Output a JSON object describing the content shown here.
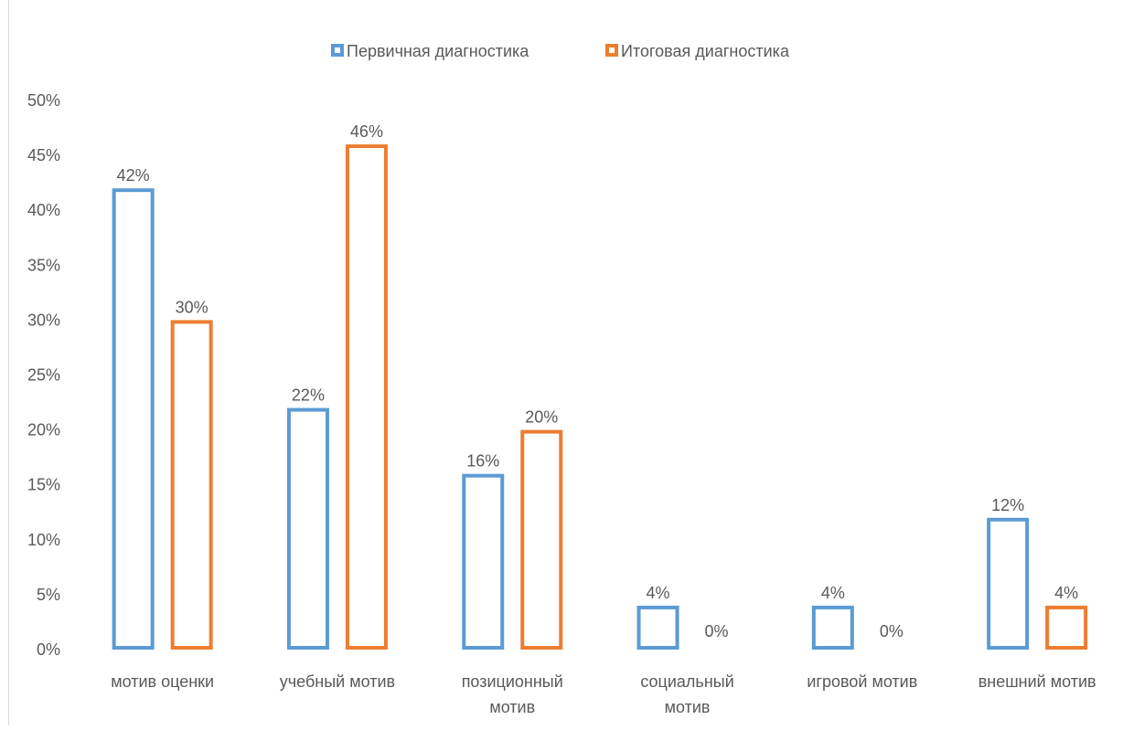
{
  "chart_data": {
    "type": "bar",
    "categories": [
      [
        "мотив оценки"
      ],
      [
        "учебный мотив"
      ],
      [
        "позиционный",
        "мотив"
      ],
      [
        "социальный",
        "мотив"
      ],
      [
        "игровой мотив"
      ],
      [
        "внешний мотив"
      ]
    ],
    "series": [
      {
        "name": "Первичная диагностика",
        "values": [
          42,
          22,
          16,
          4,
          4,
          12
        ],
        "color": "#5b9bd5"
      },
      {
        "name": "Итоговая диагностика",
        "values": [
          30,
          46,
          20,
          0,
          0,
          4
        ],
        "color": "#ed7d31"
      }
    ],
    "value_suffix": "%",
    "ylim": [
      0,
      50
    ],
    "ytick_step": 5,
    "title": "",
    "xlabel": "",
    "ylabel": "",
    "legend_position": "top",
    "grid": false
  }
}
